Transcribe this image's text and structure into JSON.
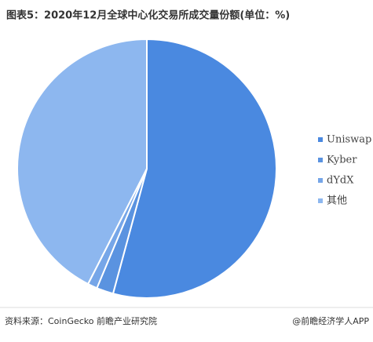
{
  "chart_data": {
    "type": "pie",
    "title": "图表5：2020年12月全球中心化交易所成交量份额(单位：%)",
    "categories": [
      "Uniswap",
      "Kyber",
      "dYdX",
      "其他"
    ],
    "values": [
      54.2,
      2.1,
      1.2,
      42.5
    ],
    "colors": [
      "#4a89e0",
      "#5a93e0",
      "#76a6e8",
      "#8db7ef"
    ],
    "legend": "right",
    "source": "资料来源：CoinGecko 前瞻产业研究院",
    "credit": "@前瞻经济学人APP"
  }
}
